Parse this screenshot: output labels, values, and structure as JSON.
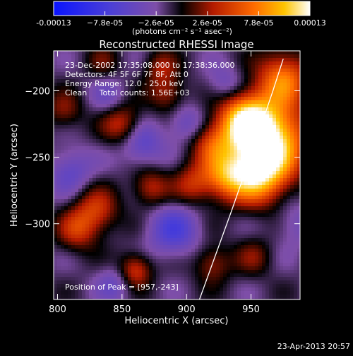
{
  "chart_data": {
    "type": "heatmap",
    "title": "Reconstructed RHESSI Image",
    "xlabel": "Heliocentric X (arcsec)",
    "ylabel": "Heliocentric Y (arcsec)",
    "xlim": [
      797,
      988
    ],
    "ylim": [
      -357,
      -170
    ],
    "x_ticks": [
      800,
      850,
      900,
      950
    ],
    "y_ticks": [
      -200,
      -250,
      -300
    ],
    "colorbar": {
      "range": [
        -0.00013,
        0.00013
      ],
      "tick_values": [
        -0.00013,
        -7.8e-05,
        -2.6e-05,
        2.6e-05,
        7.8e-05,
        0.00013
      ],
      "tick_labels": [
        "-0.00013",
        "−7.8e-05",
        "−2.6e-05",
        "2.6e-05",
        "7.8e-05",
        "0.00013"
      ],
      "unit_label": "(photons cm⁻² s⁻¹ asec⁻²)"
    },
    "annotations": [
      "23-Dec-2002 17:35:08.000 to 17:38:36.000",
      "Detectors: 4F 5F 6F 7F 8F, Att 0",
      "Energy Range: 12.0 - 25.0 keV",
      "Clean     Total counts: 1.56E+03"
    ],
    "peak_label": "Position of Peak = [957,-243]",
    "peak": [
      957,
      -243
    ],
    "limb_line": [
      [
        910,
        -357
      ],
      [
        935,
        -290
      ],
      [
        953,
        -240
      ],
      [
        967,
        -200
      ],
      [
        975,
        -176
      ]
    ],
    "sources": [
      {
        "x": 965,
        "y": -235,
        "amplitude": 1.0,
        "radius": 20
      },
      {
        "x": 955,
        "y": -262,
        "amplitude": 0.9,
        "radius": 16
      },
      {
        "x": 945,
        "y": -222,
        "amplitude": 0.8,
        "radius": 14
      },
      {
        "x": 975,
        "y": -190,
        "amplitude": 0.65,
        "radius": 14
      },
      {
        "x": 930,
        "y": -265,
        "amplitude": 0.55,
        "radius": 12
      },
      {
        "x": 920,
        "y": -240,
        "amplitude": 0.45,
        "radius": 12
      },
      {
        "x": 850,
        "y": -225,
        "amplitude": 0.45,
        "radius": 11
      },
      {
        "x": 830,
        "y": -290,
        "amplitude": 0.45,
        "radius": 12
      },
      {
        "x": 815,
        "y": -305,
        "amplitude": 0.4,
        "radius": 11
      },
      {
        "x": 872,
        "y": -273,
        "amplitude": 0.4,
        "radius": 10
      },
      {
        "x": 905,
        "y": -270,
        "amplitude": 0.4,
        "radius": 11
      },
      {
        "x": 860,
        "y": -335,
        "amplitude": 0.5,
        "radius": 9
      },
      {
        "x": 920,
        "y": -330,
        "amplitude": 0.35,
        "radius": 10
      },
      {
        "x": 885,
        "y": -202,
        "amplitude": 0.35,
        "radius": 10
      },
      {
        "x": 805,
        "y": -215,
        "amplitude": 0.3,
        "radius": 10
      },
      {
        "x": 880,
        "y": -182,
        "amplitude": 0.3,
        "radius": 9
      },
      {
        "x": 835,
        "y": -178,
        "amplitude": 0.2,
        "radius": 9
      },
      {
        "x": 952,
        "y": -325,
        "amplitude": 0.25,
        "radius": 10
      },
      {
        "x": 810,
        "y": -260,
        "amplitude": -0.3,
        "radius": 12
      },
      {
        "x": 865,
        "y": -240,
        "amplitude": -0.35,
        "radius": 12
      },
      {
        "x": 890,
        "y": -305,
        "amplitude": -0.4,
        "radius": 14
      },
      {
        "x": 845,
        "y": -345,
        "amplitude": -0.25,
        "radius": 10
      },
      {
        "x": 900,
        "y": -225,
        "amplitude": -0.3,
        "radius": 10
      },
      {
        "x": 840,
        "y": -205,
        "amplitude": -0.2,
        "radius": 10
      },
      {
        "x": 985,
        "y": -300,
        "amplitude": -0.2,
        "radius": 12
      },
      {
        "x": 930,
        "y": -195,
        "amplitude": -0.25,
        "radius": 10
      }
    ]
  },
  "timestamp": "23-Apr-2013 20:57"
}
